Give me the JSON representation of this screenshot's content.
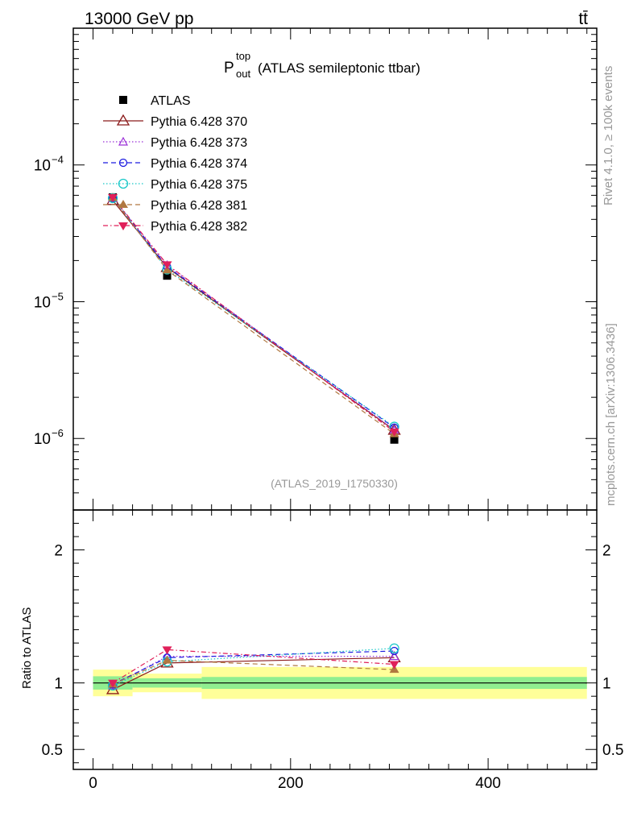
{
  "header": {
    "energy_label": "13000 GeV pp",
    "process_label": "tt̄"
  },
  "side_labels": {
    "rivet": "Rivet 4.1.0, ≥ 100k events",
    "source": "mcplots.cern.ch [arXiv:1306.3436]"
  },
  "chart_data": {
    "type": "line",
    "title_main": "P",
    "title_sup": "top",
    "title_sub": "out",
    "title_rest": "(ATLAS semileptonic ttbar)",
    "analysis_label": "(ATLAS_2019_I1750330)",
    "xlim": [
      -20,
      510
    ],
    "main_ylim": [
      3e-07,
      0.001
    ],
    "main_yscale": "log",
    "main_ytick_labels": [
      {
        "value": 0.0001,
        "base": "10",
        "exp": "−4"
      },
      {
        "value": 1e-05,
        "base": "10",
        "exp": "−5"
      },
      {
        "value": 1e-06,
        "base": "10",
        "exp": "−6"
      }
    ],
    "ratio_ylim": [
      0.35,
      2.3
    ],
    "ratio_ylabel": "Ratio to ATLAS",
    "ratio_ytick_labels": [
      {
        "value": 2,
        "label": "2"
      },
      {
        "value": 1,
        "label": "1"
      },
      {
        "value": 0.5,
        "label": "0.5"
      }
    ],
    "xtick_labels": [
      {
        "value": 0,
        "label": "0"
      },
      {
        "value": 200,
        "label": "200"
      },
      {
        "value": 400,
        "label": "400"
      }
    ],
    "bins": [
      {
        "low": 0,
        "high": 40
      },
      {
        "low": 40,
        "high": 110
      },
      {
        "low": 110,
        "high": 500
      }
    ],
    "x": [
      20,
      75,
      305
    ],
    "data": {
      "name": "ATLAS",
      "values": [
        5.8e-05,
        1.55e-05,
        9.8e-07
      ],
      "band_inner": [
        0.05,
        0.035,
        0.045
      ],
      "band_outer": [
        0.1,
        0.07,
        0.12
      ]
    },
    "series": [
      {
        "name": "Pythia 6.428 370",
        "color": "#8b1a1a",
        "dash": "",
        "marker": "triangle-open",
        "values": [
          5.5e-05,
          1.78e-05,
          1.15e-06
        ],
        "ratio": [
          0.95,
          1.15,
          1.19
        ]
      },
      {
        "name": "Pythia 6.428 373",
        "color": "#9b30d8",
        "dash": "1.5,2.5",
        "marker": "triangle-open-small",
        "values": [
          5.7e-05,
          1.85e-05,
          1.16e-06
        ],
        "ratio": [
          0.98,
          1.2,
          1.2
        ]
      },
      {
        "name": "Pythia 6.428 374",
        "color": "#1c1ce0",
        "dash": "6,4",
        "marker": "circle-open",
        "values": [
          5.75e-05,
          1.8e-05,
          1.2e-06
        ],
        "ratio": [
          0.99,
          1.19,
          1.24
        ]
      },
      {
        "name": "Pythia 6.428 375",
        "color": "#19c8c8",
        "dash": "1.5,2.5",
        "marker": "circle-open-large",
        "values": [
          5.72e-05,
          1.72e-05,
          1.22e-06
        ],
        "ratio": [
          0.98,
          1.16,
          1.26
        ]
      },
      {
        "name": "Pythia 6.428 381",
        "color": "#b07840",
        "dash": "6,4",
        "marker": "triangle-filled",
        "values": [
          5.75e-05,
          1.7e-05,
          1.08e-06
        ],
        "ratio": [
          0.99,
          1.17,
          1.1
        ]
      },
      {
        "name": "Pythia 6.428 382",
        "color": "#e0205a",
        "dash": "6,3,1.5,3",
        "marker": "triangle-down-filled",
        "values": [
          5.8e-05,
          1.87e-05,
          1.12e-06
        ],
        "ratio": [
          1.0,
          1.25,
          1.14
        ]
      }
    ]
  }
}
